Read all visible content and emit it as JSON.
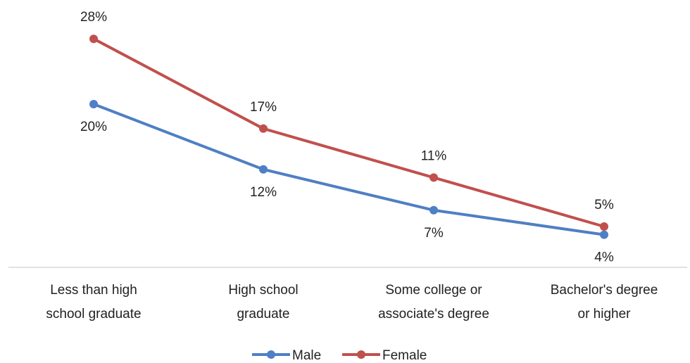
{
  "chart_data": {
    "type": "line",
    "categories": [
      [
        "Less than high",
        "school graduate"
      ],
      [
        "High school",
        "graduate"
      ],
      [
        "Some college or",
        "associate's degree"
      ],
      [
        "Bachelor's degree",
        "or higher"
      ]
    ],
    "series": [
      {
        "name": "Male",
        "color": "#4f7fc4",
        "values": [
          20,
          12,
          7,
          4
        ],
        "labels": [
          "20%",
          "12%",
          "7%",
          "4%"
        ],
        "label_position": "below"
      },
      {
        "name": "Female",
        "color": "#c0504d",
        "values": [
          28,
          17,
          11,
          5
        ],
        "labels": [
          "28%",
          "17%",
          "11%",
          "5%"
        ],
        "label_position": "above"
      }
    ],
    "y_unit": "%",
    "grid": false,
    "legend": "bottom-center"
  }
}
